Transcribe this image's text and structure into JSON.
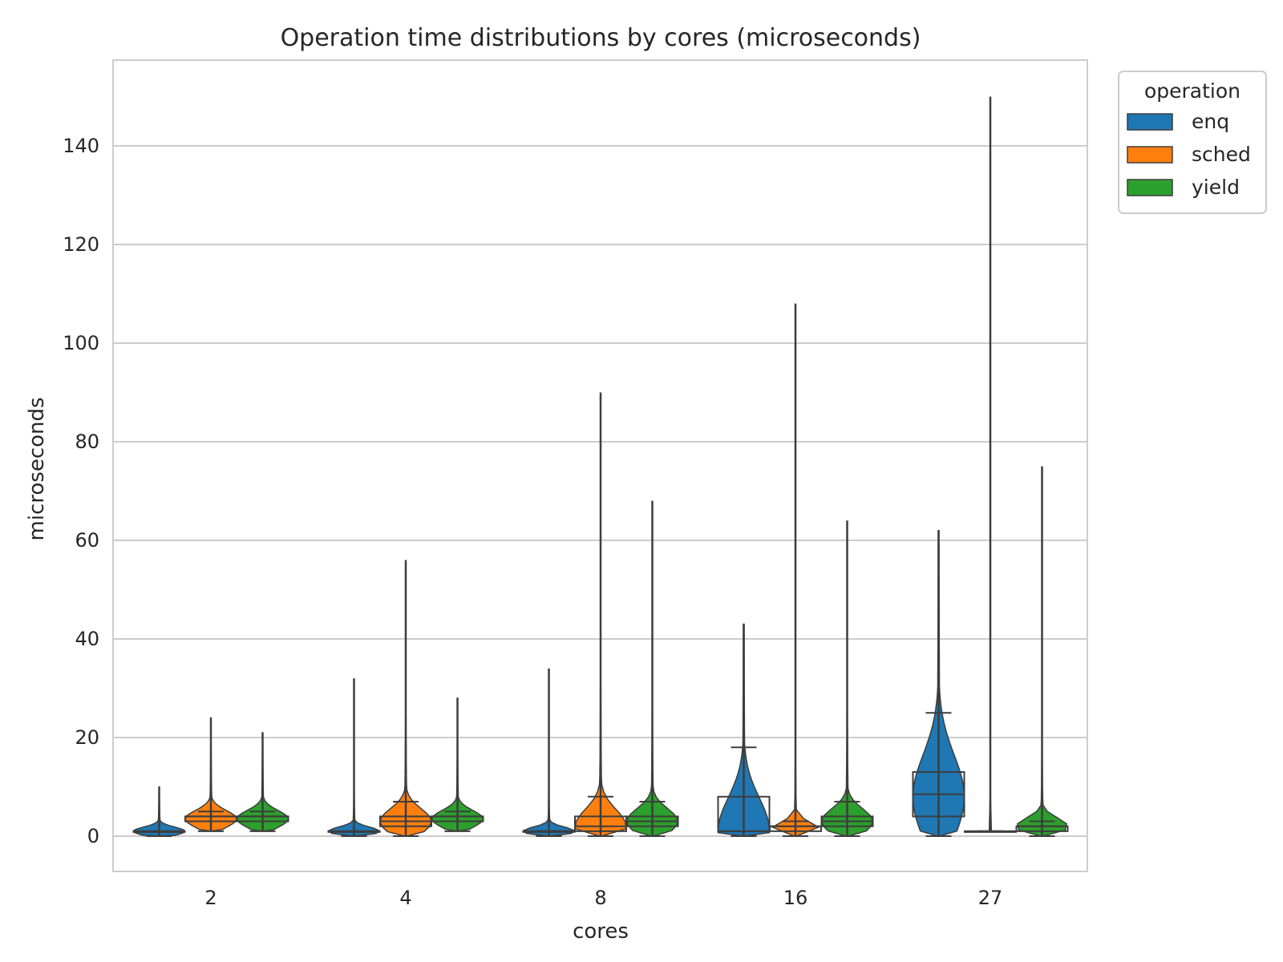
{
  "chart_data": {
    "type": "violin",
    "title": "Operation time distributions by cores (microseconds)",
    "xlabel": "cores",
    "ylabel": "microseconds",
    "categories": [
      "2",
      "4",
      "8",
      "16",
      "27"
    ],
    "ylim": [
      -7,
      157
    ],
    "yticks": [
      0,
      20,
      40,
      60,
      80,
      100,
      120,
      140
    ],
    "grid": "horizontal",
    "legend": {
      "title": "operation",
      "placement": "outside-top-right"
    },
    "series": [
      {
        "name": "enq",
        "color": "#1f77b4",
        "stats": [
          {
            "min": 0,
            "q1": 1,
            "median": 1,
            "q3": 1,
            "max": 10,
            "whisker_high": 1,
            "mode": 1
          },
          {
            "min": 0,
            "q1": 1,
            "median": 1,
            "q3": 1,
            "max": 32,
            "whisker_high": 1,
            "mode": 1
          },
          {
            "min": 0,
            "q1": 1,
            "median": 1,
            "q3": 1,
            "max": 34,
            "whisker_high": 1,
            "mode": 1
          },
          {
            "min": 0,
            "q1": 1,
            "median": 1,
            "q3": 8,
            "max": 43,
            "whisker_high": 18,
            "mode": 1
          },
          {
            "min": 0,
            "q1": 4,
            "median": 8.5,
            "q3": 13,
            "max": 62,
            "whisker_high": 25,
            "mode": 8
          }
        ]
      },
      {
        "name": "sched",
        "color": "#ff7f0e",
        "stats": [
          {
            "min": 1,
            "q1": 3,
            "median": 4,
            "q3": 4,
            "max": 24,
            "whisker_high": 5,
            "mode": 3.5
          },
          {
            "min": 0,
            "q1": 2,
            "median": 3,
            "q3": 4,
            "max": 56,
            "whisker_high": 7,
            "mode": 3
          },
          {
            "min": 0,
            "q1": 1,
            "median": 2,
            "q3": 4,
            "max": 90,
            "whisker_high": 8,
            "mode": 2
          },
          {
            "min": 0,
            "q1": 1,
            "median": 2,
            "q3": 2,
            "max": 108,
            "whisker_high": 3,
            "mode": 1
          },
          {
            "min": 1,
            "q1": 1,
            "median": 1,
            "q3": 1,
            "max": 150,
            "whisker_high": 1,
            "mode": 1
          }
        ]
      },
      {
        "name": "yield",
        "color": "#2ca02c",
        "stats": [
          {
            "min": 1,
            "q1": 3,
            "median": 4,
            "q3": 4,
            "max": 21,
            "whisker_high": 5,
            "mode": 3.5
          },
          {
            "min": 1,
            "q1": 3,
            "median": 4,
            "q3": 4,
            "max": 28,
            "whisker_high": 5,
            "mode": 3.5
          },
          {
            "min": 0,
            "q1": 2,
            "median": 3,
            "q3": 4,
            "max": 68,
            "whisker_high": 7,
            "mode": 3
          },
          {
            "min": 0,
            "q1": 2,
            "median": 3,
            "q3": 4,
            "max": 64,
            "whisker_high": 7,
            "mode": 3
          },
          {
            "min": 0,
            "q1": 1,
            "median": 2,
            "q3": 2,
            "max": 75,
            "whisker_high": 3,
            "mode": 2
          }
        ]
      }
    ]
  }
}
